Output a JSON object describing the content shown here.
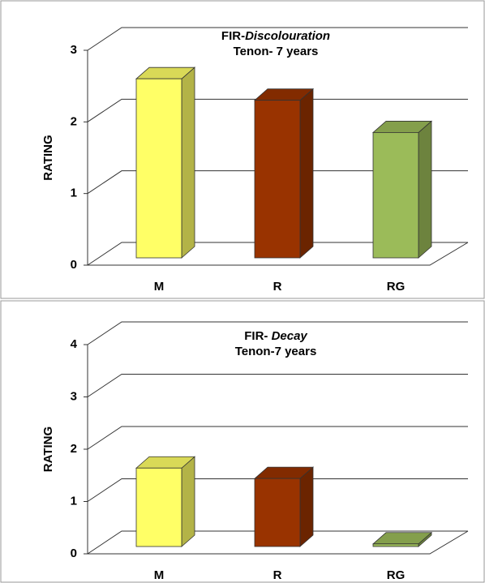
{
  "chart_data": [
    {
      "type": "bar3d",
      "title": [
        "FIR-",
        "Discolouration"
      ],
      "subtitle": "Tenon- 7 years",
      "ylabel": "RATING",
      "categories": [
        "M",
        "R",
        "RG"
      ],
      "values": [
        2.5,
        2.2,
        1.75
      ],
      "colors": [
        "#ffff66",
        "#993300",
        "#9bbb59"
      ],
      "ylim": [
        0,
        3
      ],
      "yticks": [
        0,
        1,
        2,
        3
      ],
      "grid": true
    },
    {
      "type": "bar3d",
      "title": [
        "FIR- ",
        "Decay"
      ],
      "subtitle": "Tenon-7 years",
      "ylabel": "RATING",
      "categories": [
        "M",
        "R",
        "RG"
      ],
      "values": [
        1.5,
        1.3,
        0.05
      ],
      "colors": [
        "#ffff66",
        "#993300",
        "#9bbb59"
      ],
      "ylim": [
        0,
        4
      ],
      "yticks": [
        0,
        1,
        2,
        3,
        4
      ],
      "grid": true
    }
  ]
}
